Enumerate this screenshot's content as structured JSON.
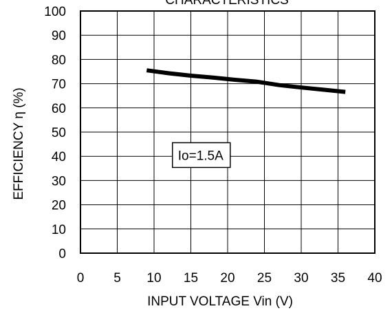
{
  "chart_data": {
    "type": "line",
    "title": "CHARACTERISTICS",
    "xlabel": "INPUT VOLTAGE  Vin (V)",
    "ylabel": "EFFICIENCY  η (%)",
    "xlim": [
      0,
      40
    ],
    "ylim": [
      0,
      100
    ],
    "x_ticks": [
      0,
      5,
      10,
      15,
      20,
      25,
      30,
      35,
      40
    ],
    "y_ticks": [
      0,
      10,
      20,
      30,
      40,
      50,
      60,
      70,
      80,
      90,
      100
    ],
    "grid": true,
    "series": [
      {
        "name": "",
        "color": "#000000",
        "x": [
          9,
          12,
          15,
          18,
          21,
          24,
          27,
          30,
          33,
          36
        ],
        "y": [
          75.5,
          74.3,
          73.3,
          72.5,
          71.6,
          70.8,
          69.4,
          68.4,
          67.5,
          66.6
        ]
      }
    ],
    "annotations": [
      {
        "text": "Io=1.5A",
        "x": 12.5,
        "y": 40.5
      }
    ]
  }
}
